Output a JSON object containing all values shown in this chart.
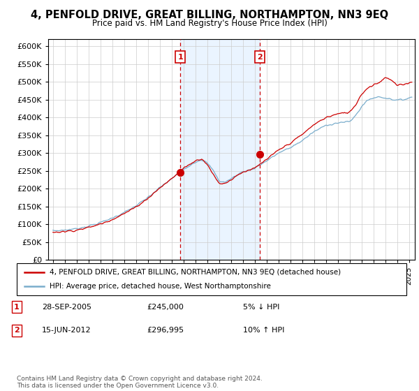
{
  "title": "4, PENFOLD DRIVE, GREAT BILLING, NORTHAMPTON, NN3 9EQ",
  "subtitle": "Price paid vs. HM Land Registry's House Price Index (HPI)",
  "legend_line1": "4, PENFOLD DRIVE, GREAT BILLING, NORTHAMPTON, NN3 9EQ (detached house)",
  "legend_line2": "HPI: Average price, detached house, West Northamptonshire",
  "ylim": [
    0,
    620000
  ],
  "yticks": [
    0,
    50000,
    100000,
    150000,
    200000,
    250000,
    300000,
    350000,
    400000,
    450000,
    500000,
    550000,
    600000
  ],
  "transaction1_date": "28-SEP-2005",
  "transaction1_price": "£245,000",
  "transaction1_hpi": "5% ↓ HPI",
  "transaction1_x": 2005.73,
  "transaction1_y": 245000,
  "transaction2_date": "15-JUN-2012",
  "transaction2_price": "£296,995",
  "transaction2_hpi": "10% ↑ HPI",
  "transaction2_x": 2012.45,
  "transaction2_y": 296995,
  "footer": "Contains HM Land Registry data © Crown copyright and database right 2024.\nThis data is licensed under the Open Government Licence v3.0.",
  "color_red": "#cc0000",
  "color_blue": "#7aadcc",
  "color_bg": "#ddeeff",
  "vline1_x": 2005.73,
  "vline2_x": 2012.45,
  "xlim_left": 1994.6,
  "xlim_right": 2025.5
}
